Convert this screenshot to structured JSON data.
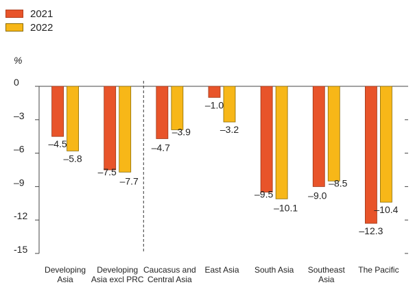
{
  "legend": [
    {
      "label": "2021",
      "color": "#E8542A"
    },
    {
      "label": "2022",
      "color": "#F7B718"
    }
  ],
  "chart_data": {
    "type": "bar",
    "ylabel": "%",
    "ylim": [
      -15,
      0
    ],
    "yticks": [
      0,
      -3,
      -6,
      -9,
      -12,
      -15
    ],
    "ytick_labels": [
      "0",
      "–3",
      "–6",
      "–9",
      "-12",
      "-15"
    ],
    "categories": [
      [
        "Developing",
        "Asia"
      ],
      [
        "Developing",
        "Asia excl PRC"
      ],
      [
        "Caucasus and",
        "Central Asia"
      ],
      [
        "East Asia"
      ],
      [
        "South Asia"
      ],
      [
        "Southeast",
        "Asia"
      ],
      [
        "The Pacific"
      ]
    ],
    "series": [
      {
        "name": "2021",
        "color": "#E8542A",
        "values": [
          -4.5,
          -7.5,
          -4.7,
          -1.0,
          -9.5,
          -9.0,
          -12.3
        ],
        "labels": [
          "–4.5",
          "–7.5",
          "–4.7",
          "–1.0",
          "–9.5",
          "–9.0",
          "–12.3"
        ]
      },
      {
        "name": "2022",
        "color": "#F7B718",
        "values": [
          -5.8,
          -7.7,
          -3.9,
          -3.2,
          -10.1,
          -8.5,
          -10.4
        ],
        "labels": [
          "–5.8",
          "–7.7",
          "–3.9",
          "–3.2",
          "–10.1",
          "–8.5",
          "–10.4"
        ]
      }
    ],
    "grid": false,
    "legend_position": "top-left",
    "divider_after_category": 1
  }
}
